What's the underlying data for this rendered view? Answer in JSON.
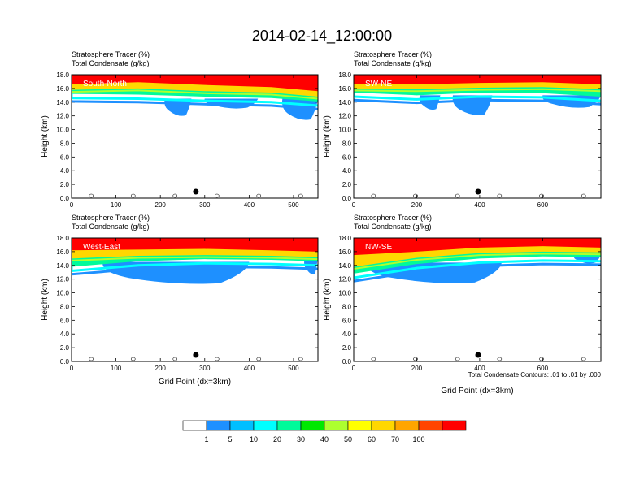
{
  "figure": {
    "title": "2014-02-14_12:00:00",
    "contour_note": "Total Condensate Contours: .01 to .01 by .000"
  },
  "colorbar": {
    "levels": [
      "1",
      "5",
      "10",
      "20",
      "30",
      "40",
      "50",
      "60",
      "70",
      "100"
    ],
    "colors": [
      "#ffffff",
      "#1e90ff",
      "#00bfff",
      "#00ffff",
      "#00fa9a",
      "#00e800",
      "#adff2f",
      "#ffff00",
      "#ffd700",
      "#ffa500",
      "#ff4500",
      "#ff0000"
    ]
  },
  "chart_data": [
    {
      "type": "heatmap",
      "panel_label": "South-North",
      "header_line1": "Stratosphere Tracer   (%)",
      "header_line2": "Total Condensate   (g/kg)",
      "ylabel": "Height (km)",
      "xlabel": "",
      "xlim": [
        0,
        555
      ],
      "ylim": [
        0,
        18
      ],
      "xticks": [
        0,
        100,
        200,
        300,
        400,
        500
      ],
      "yticks": [
        "0.0",
        "2.0",
        "4.0",
        "6.0",
        "8.0",
        "10.0",
        "12.0",
        "14.0",
        "16.0",
        "18.0"
      ],
      "marker_x": 280,
      "tracer_bands": [
        {
          "x": [
            0,
            150,
            300,
            450,
            555
          ],
          "level": 100,
          "base": [
            16.6,
            16.9,
            16.5,
            16.2,
            15.6
          ]
        },
        {
          "x": [
            0,
            150,
            300,
            450,
            555
          ],
          "level": 60,
          "base": [
            15.8,
            16.0,
            15.6,
            15.4,
            14.8
          ]
        },
        {
          "x": [
            0,
            150,
            300,
            450,
            555
          ],
          "level": 20,
          "base": [
            15.2,
            15.1,
            14.8,
            14.6,
            14.1
          ]
        }
      ],
      "blue_patches": [
        {
          "x": [
            210,
            270
          ],
          "y": [
            12.1,
            14.5
          ]
        },
        {
          "x": [
            300,
            420
          ],
          "y": [
            13.2,
            14.5
          ]
        },
        {
          "x": [
            475,
            555
          ],
          "y": [
            11.5,
            14.5
          ]
        }
      ]
    },
    {
      "type": "heatmap",
      "panel_label": "SW-NE",
      "header_line1": "Stratosphere Tracer   (%)",
      "header_line2": "Total Condensate   (g/kg)",
      "ylabel": "Height (km)",
      "xlabel": "",
      "xlim": [
        0,
        785
      ],
      "ylim": [
        0,
        18
      ],
      "xticks": [
        0,
        200,
        400,
        600
      ],
      "yticks": [
        "0.0",
        "2.0",
        "4.0",
        "6.0",
        "8.0",
        "10.0",
        "12.0",
        "14.0",
        "16.0",
        "18.0"
      ],
      "marker_x": 395,
      "tracer_bands": [
        {
          "x": [
            0,
            200,
            400,
            600,
            785
          ],
          "level": 100,
          "base": [
            16.6,
            16.6,
            16.8,
            16.9,
            16.6
          ]
        },
        {
          "x": [
            0,
            200,
            400,
            600,
            785
          ],
          "level": 60,
          "base": [
            16.0,
            15.9,
            16.1,
            16.2,
            15.9
          ]
        },
        {
          "x": [
            0,
            200,
            400,
            600,
            785
          ],
          "level": 20,
          "base": [
            15.4,
            15.0,
            15.4,
            15.3,
            14.8
          ]
        }
      ],
      "blue_patches": [
        {
          "x": [
            210,
            275
          ],
          "y": [
            13.0,
            15.0
          ]
        },
        {
          "x": [
            315,
            440
          ],
          "y": [
            12.2,
            15.0
          ]
        },
        {
          "x": [
            600,
            785
          ],
          "y": [
            13.3,
            15.0
          ]
        }
      ]
    },
    {
      "type": "heatmap",
      "panel_label": "West-East",
      "header_line1": "Stratosphere Tracer   (%)",
      "header_line2": "Total Condensate   (g/kg)",
      "ylabel": "Height (km)",
      "xlabel": "Grid Point (dx=3km)",
      "xlim": [
        0,
        555
      ],
      "ylim": [
        0,
        18
      ],
      "xticks": [
        0,
        100,
        200,
        300,
        400,
        500
      ],
      "yticks": [
        "0.0",
        "2.0",
        "4.0",
        "6.0",
        "8.0",
        "10.0",
        "12.0",
        "14.0",
        "16.0",
        "18.0"
      ],
      "marker_x": 280,
      "tracer_bands": [
        {
          "x": [
            0,
            150,
            300,
            450,
            555
          ],
          "level": 100,
          "base": [
            16.2,
            16.3,
            16.4,
            16.2,
            16.0
          ]
        },
        {
          "x": [
            0,
            150,
            300,
            450,
            555
          ],
          "level": 60,
          "base": [
            15.0,
            15.4,
            15.5,
            15.4,
            15.2
          ]
        },
        {
          "x": [
            0,
            150,
            300,
            450,
            555
          ],
          "level": 20,
          "base": [
            13.8,
            14.6,
            14.9,
            14.8,
            14.6
          ]
        }
      ],
      "blue_patches": [
        {
          "x": [
            70,
            400
          ],
          "y": [
            11.4,
            14.5
          ]
        },
        {
          "x": [
            525,
            555
          ],
          "y": [
            12.8,
            15.0
          ]
        }
      ]
    },
    {
      "type": "heatmap",
      "panel_label": "NW-SE",
      "header_line1": "Stratosphere Tracer   (%)",
      "header_line2": "Total Condensate   (g/kg)",
      "ylabel": "Height (km)",
      "xlabel": "Grid Point (dx=3km)",
      "xlim": [
        0,
        785
      ],
      "ylim": [
        0,
        18
      ],
      "xticks": [
        0,
        200,
        400,
        600
      ],
      "yticks": [
        "0.0",
        "2.0",
        "4.0",
        "6.0",
        "8.0",
        "10.0",
        "12.0",
        "14.0",
        "16.0",
        "18.0"
      ],
      "marker_x": 395,
      "tracer_bands": [
        {
          "x": [
            0,
            200,
            400,
            600,
            785
          ],
          "level": 100,
          "base": [
            15.5,
            16.0,
            16.6,
            16.8,
            16.6
          ]
        },
        {
          "x": [
            0,
            200,
            400,
            600,
            785
          ],
          "level": 60,
          "base": [
            13.8,
            15.1,
            15.8,
            16.0,
            15.9
          ]
        },
        {
          "x": [
            0,
            200,
            400,
            600,
            785
          ],
          "level": 20,
          "base": [
            12.8,
            14.2,
            15.0,
            15.3,
            15.2
          ]
        }
      ],
      "blue_patches": [
        {
          "x": [
            40,
            470
          ],
          "y": [
            11.5,
            14.4
          ]
        },
        {
          "x": [
            700,
            785
          ],
          "y": [
            14.4,
            15.5
          ]
        }
      ]
    }
  ]
}
